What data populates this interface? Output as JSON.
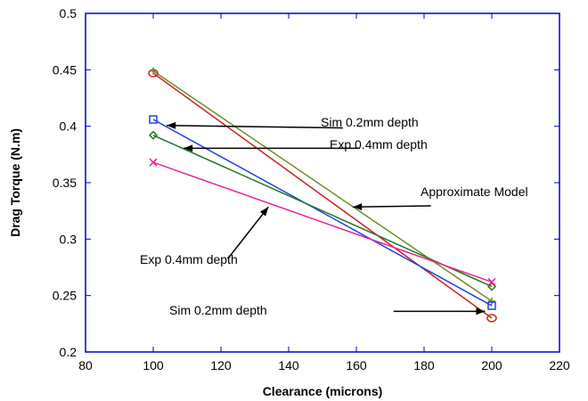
{
  "chart_data": {
    "type": "line",
    "title": "",
    "xlabel": "Clearance (microns)",
    "ylabel": "Drag Torque (N.m)",
    "xlim": [
      80,
      220
    ],
    "ylim": [
      0.2,
      0.5
    ],
    "x_ticks": [
      80,
      100,
      120,
      140,
      160,
      180,
      200,
      220
    ],
    "y_ticks": [
      0.2,
      0.25,
      0.3,
      0.35,
      0.4,
      0.45,
      0.5
    ],
    "x_tick_labels": [
      "80",
      "100",
      "120",
      "140",
      "160",
      "180",
      "200",
      "220"
    ],
    "y_tick_labels": [
      "0.2",
      "0.25",
      "0.3",
      "0.35",
      "0.4",
      "0.45",
      "0.5"
    ],
    "grid": false,
    "x": [
      100,
      200
    ],
    "series": [
      {
        "color": "#cc2222",
        "marker": "circle",
        "values": [
          0.447,
          0.23
        ]
      },
      {
        "color": "#6b8e23",
        "marker": "plus",
        "values": [
          0.449,
          0.245
        ]
      },
      {
        "color": "#2244dd",
        "marker": "square",
        "values": [
          0.406,
          0.241
        ]
      },
      {
        "color": "#227722",
        "marker": "diamond",
        "values": [
          0.392,
          0.258
        ]
      },
      {
        "color": "#ee2299",
        "marker": "x",
        "values": [
          0.368,
          0.262
        ]
      }
    ],
    "annotations": [
      {
        "text": "Sim 0.2mm depth",
        "arrow_from": [
          156,
          0.3985
        ],
        "arrow_to": [
          104,
          0.4007
        ]
      },
      {
        "text": "Exp 0.4mm depth",
        "arrow_from": [
          161,
          0.3805
        ],
        "arrow_to": [
          109,
          0.3805
        ]
      },
      {
        "text": "Approximate Model",
        "arrow_from": [
          182,
          0.3295
        ],
        "arrow_to": [
          159,
          0.3285
        ]
      },
      {
        "text": "Exp 0.4mm depth",
        "arrow_from": [
          122,
          0.2825
        ],
        "arrow_to": [
          134,
          0.3285
        ]
      },
      {
        "text": "Sim 0.2mm depth",
        "arrow_from": [
          171,
          0.236
        ],
        "arrow_to": [
          198,
          0.236
        ]
      }
    ]
  }
}
